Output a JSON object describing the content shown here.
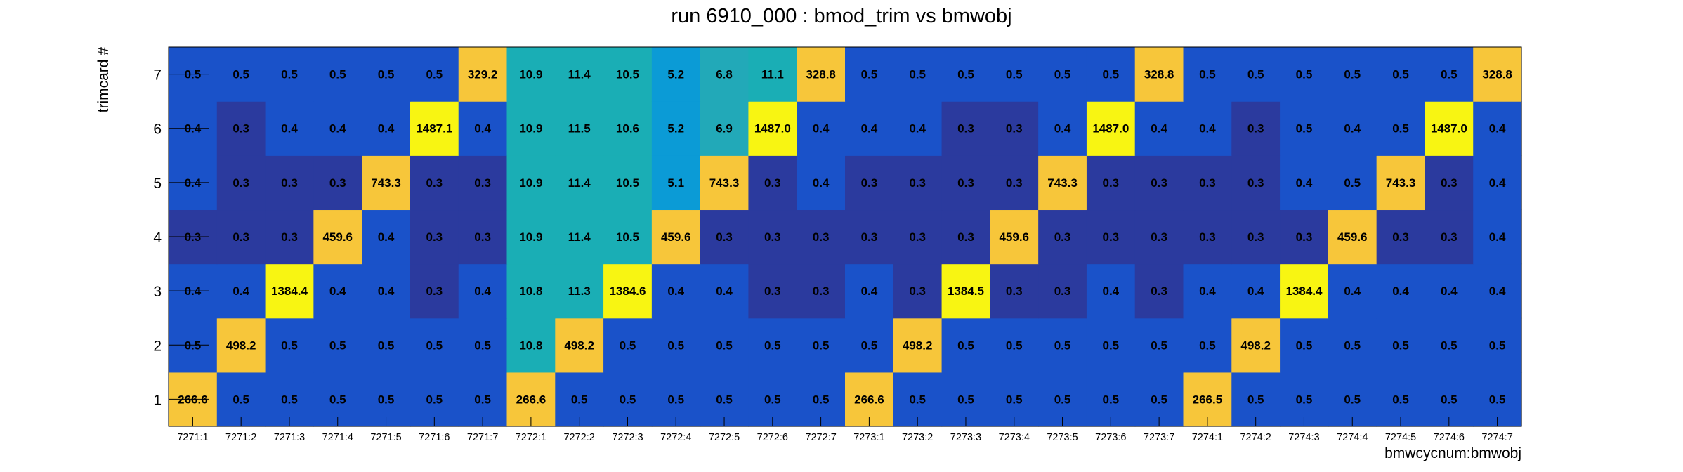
{
  "chart_data": {
    "type": "heatmap",
    "title": "run 6910_000 : bmod_trim vs bmwobj",
    "xlabel": "bmwcycnum:bmwobj",
    "ylabel": "trimcard #",
    "x_categories": [
      "7271:1",
      "7271:2",
      "7271:3",
      "7271:4",
      "7271:5",
      "7271:6",
      "7271:7",
      "7272:1",
      "7272:2",
      "7272:3",
      "7272:4",
      "7272:5",
      "7272:6",
      "7272:7",
      "7273:1",
      "7273:2",
      "7273:3",
      "7273:4",
      "7273:5",
      "7273:6",
      "7273:7",
      "7274:1",
      "7274:2",
      "7274:3",
      "7274:4",
      "7274:5",
      "7274:6",
      "7274:7"
    ],
    "y_categories": [
      "1",
      "2",
      "3",
      "4",
      "5",
      "6",
      "7"
    ],
    "colorscale": "parula-like",
    "values": [
      [
        "266.6",
        "0.5",
        "0.5",
        "0.5",
        "0.5",
        "0.5",
        "0.5",
        "266.6",
        "0.5",
        "0.5",
        "0.5",
        "0.5",
        "0.5",
        "0.5",
        "266.6",
        "0.5",
        "0.5",
        "0.5",
        "0.5",
        "0.5",
        "0.5",
        "266.5",
        "0.5",
        "0.5",
        "0.5",
        "0.5",
        "0.5",
        "0.5"
      ],
      [
        "0.5",
        "498.2",
        "0.5",
        "0.5",
        "0.5",
        "0.5",
        "0.5",
        "10.8",
        "498.2",
        "0.5",
        "0.5",
        "0.5",
        "0.5",
        "0.5",
        "0.5",
        "498.2",
        "0.5",
        "0.5",
        "0.5",
        "0.5",
        "0.5",
        "0.5",
        "498.2",
        "0.5",
        "0.5",
        "0.5",
        "0.5",
        "0.5"
      ],
      [
        "0.4",
        "0.4",
        "1384.4",
        "0.4",
        "0.4",
        "0.3",
        "0.4",
        "10.8",
        "11.3",
        "1384.6",
        "0.4",
        "0.4",
        "0.3",
        "0.3",
        "0.4",
        "0.3",
        "1384.5",
        "0.3",
        "0.3",
        "0.4",
        "0.3",
        "0.4",
        "0.4",
        "1384.4",
        "0.4",
        "0.4",
        "0.4",
        "0.4"
      ],
      [
        "0.3",
        "0.3",
        "0.3",
        "459.6",
        "0.4",
        "0.3",
        "0.3",
        "10.9",
        "11.4",
        "10.5",
        "459.6",
        "0.3",
        "0.3",
        "0.3",
        "0.3",
        "0.3",
        "0.3",
        "459.6",
        "0.3",
        "0.3",
        "0.3",
        "0.3",
        "0.3",
        "0.3",
        "459.6",
        "0.3",
        "0.3",
        "0.4"
      ],
      [
        "0.4",
        "0.3",
        "0.3",
        "0.3",
        "743.3",
        "0.3",
        "0.3",
        "10.9",
        "11.4",
        "10.5",
        "5.1",
        "743.3",
        "0.3",
        "0.4",
        "0.3",
        "0.3",
        "0.3",
        "0.3",
        "743.3",
        "0.3",
        "0.3",
        "0.3",
        "0.3",
        "0.4",
        "0.5",
        "743.3",
        "0.3",
        "0.4"
      ],
      [
        "0.4",
        "0.3",
        "0.4",
        "0.4",
        "0.4",
        "1487.1",
        "0.4",
        "10.9",
        "11.5",
        "10.6",
        "5.2",
        "6.9",
        "1487.0",
        "0.4",
        "0.4",
        "0.4",
        "0.3",
        "0.3",
        "0.4",
        "1487.0",
        "0.4",
        "0.4",
        "0.3",
        "0.5",
        "0.4",
        "0.5",
        "1487.0",
        "0.4"
      ],
      [
        "0.5",
        "0.5",
        "0.5",
        "0.5",
        "0.5",
        "0.5",
        "329.2",
        "10.9",
        "11.4",
        "10.5",
        "5.2",
        "6.8",
        "11.1",
        "328.8",
        "0.5",
        "0.5",
        "0.5",
        "0.5",
        "0.5",
        "0.5",
        "328.8",
        "0.5",
        "0.5",
        "0.5",
        "0.5",
        "0.5",
        "0.5",
        "328.8"
      ]
    ],
    "cell_colors": {
      "0.3": "#2b3a9e",
      "0.4": "#1a52c9",
      "0.5": "#1a52c9",
      "high": "#f7c63a",
      "very_high": "#f8f512",
      "teal_10": "#1aaeb5",
      "cyan_5": "#0b9bd6",
      "teal_6_8": "#22a9b8"
    },
    "grid": false
  }
}
